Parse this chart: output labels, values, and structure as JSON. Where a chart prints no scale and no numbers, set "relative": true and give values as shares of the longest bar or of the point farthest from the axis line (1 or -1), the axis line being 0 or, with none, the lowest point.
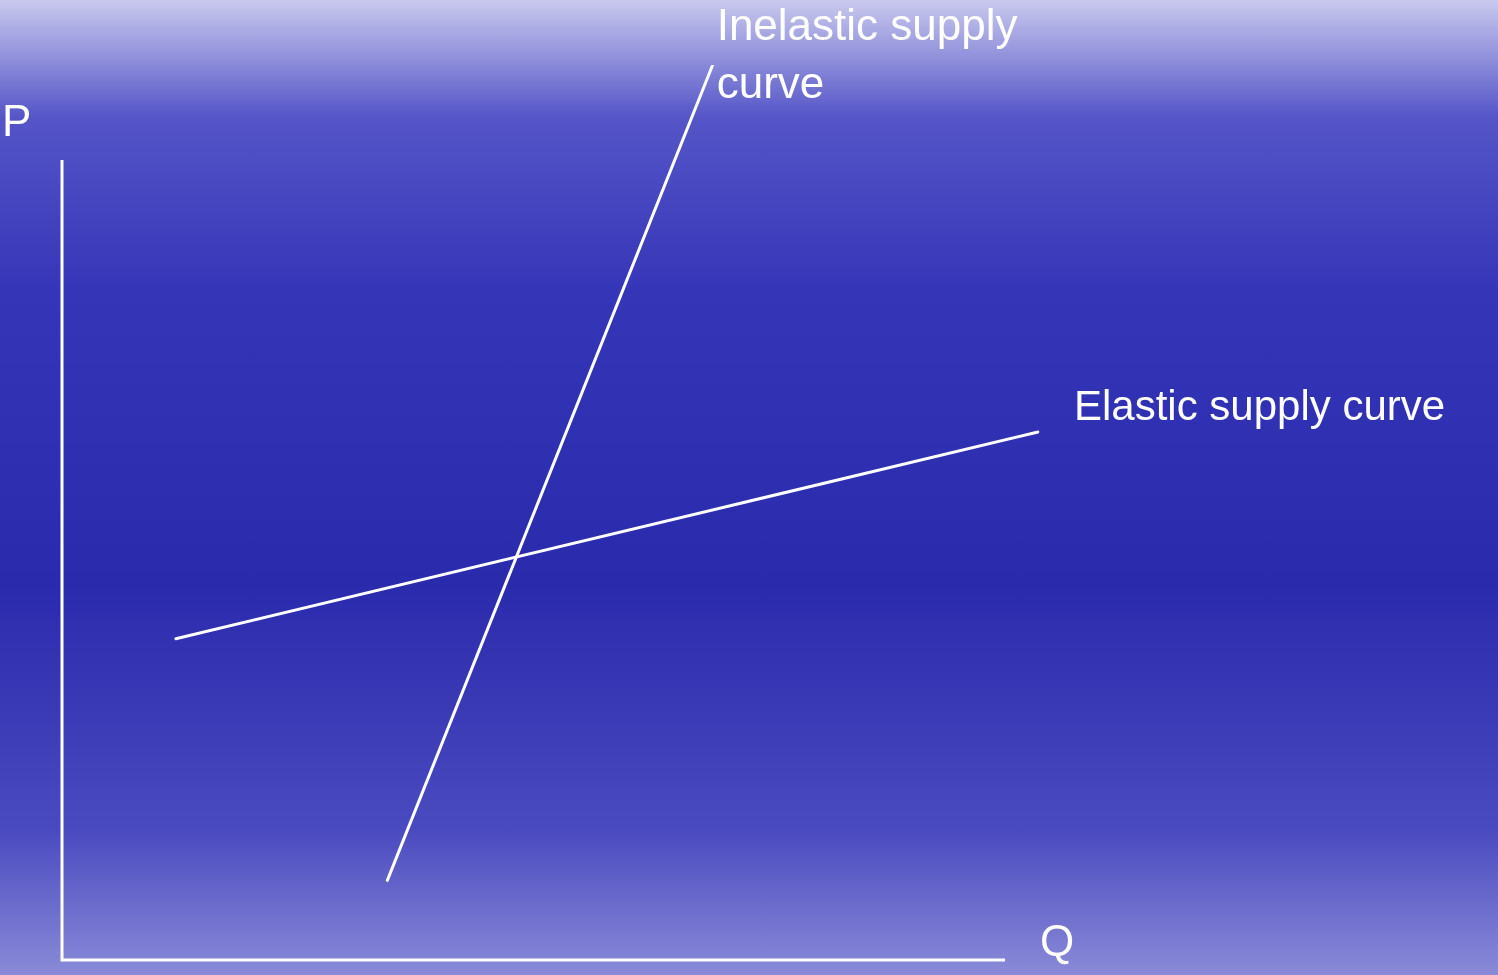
{
  "chart_data": {
    "type": "line",
    "relative": true,
    "xlabel": "Q",
    "ylabel": "P",
    "marker": "none",
    "line_style": "solid",
    "categories": [
      null,
      null,
      null,
      null,
      null,
      null,
      null,
      null,
      null,
      null,
      null,
      null,
      null,
      null,
      null,
      null,
      null,
      null,
      null,
      null,
      null,
      null,
      null,
      null,
      null,
      null,
      null,
      null,
      null,
      null,
      null,
      null,
      null,
      null,
      null,
      null,
      null,
      null,
      null,
      null,
      null,
      null,
      null,
      null,
      null,
      null,
      null,
      null,
      null,
      null,
      null,
      null,
      null,
      null,
      null,
      null,
      null,
      null,
      null,
      null,
      null
    ],
    "series": [
      {
        "name": "Inelastic supply curve",
        "color": "#ffffff",
        "values": [
          null,
          null,
          null,
          null,
          null,
          null,
          null,
          null,
          null,
          null,
          null,
          null,
          null,
          null,
          null,
          null,
          null,
          null,
          null,
          null,
          0.089,
          null,
          null,
          null,
          null,
          null,
          null,
          null,
          null,
          null,
          null,
          null,
          null,
          null,
          null,
          null,
          null,
          null,
          null,
          null,
          1,
          null,
          null,
          null,
          null,
          null,
          null,
          null,
          null,
          null,
          null,
          null,
          null,
          null,
          null,
          null,
          null,
          null,
          null,
          null,
          null
        ]
      },
      {
        "name": "Elastic supply curve",
        "color": "#ffffff",
        "values": [
          null,
          null,
          null,
          null,
          null,
          null,
          null,
          0.359,
          null,
          null,
          null,
          null,
          null,
          null,
          null,
          null,
          null,
          null,
          null,
          null,
          null,
          null,
          null,
          null,
          null,
          null,
          null,
          null,
          null,
          null,
          null,
          null,
          null,
          null,
          null,
          null,
          null,
          null,
          null,
          null,
          null,
          null,
          null,
          null,
          null,
          null,
          null,
          null,
          null,
          null,
          null,
          null,
          null,
          null,
          null,
          null,
          null,
          null,
          null,
          null,
          0.59
        ]
      }
    ]
  }
}
